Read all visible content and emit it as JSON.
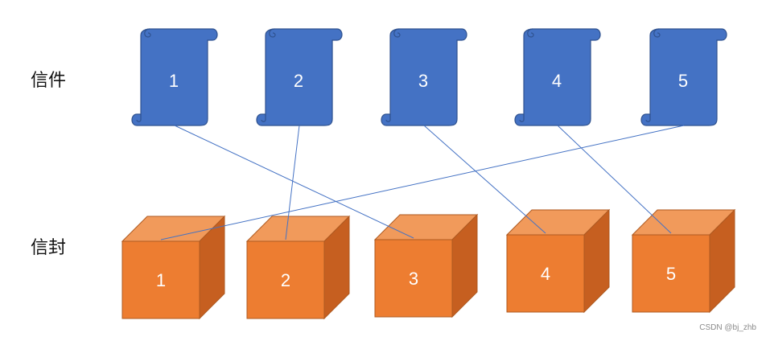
{
  "labels": {
    "letters": "信件",
    "envelopes": "信封"
  },
  "letters": [
    "1",
    "2",
    "3",
    "4",
    "5"
  ],
  "envelopes": [
    "1",
    "2",
    "3",
    "4",
    "5"
  ],
  "connections": [
    {
      "letter": "1",
      "envelope": "3"
    },
    {
      "letter": "2",
      "envelope": "2"
    },
    {
      "letter": "3",
      "envelope": "4"
    },
    {
      "letter": "4",
      "envelope": "5"
    },
    {
      "letter": "5",
      "envelope": "1"
    }
  ],
  "colors": {
    "scroll_fill": "#4472C4",
    "scroll_stroke": "#2F528F",
    "box_front": "#ED7D31",
    "box_top": "#F19A5B",
    "box_side": "#C65F20",
    "box_stroke": "#AE5A21",
    "line": "#4472C4"
  },
  "watermark": "CSDN @bj_zhb"
}
